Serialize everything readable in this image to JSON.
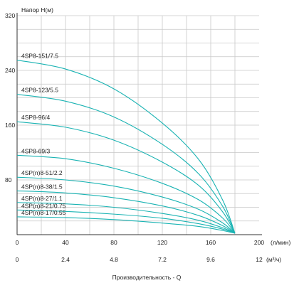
{
  "chart_data": {
    "type": "line",
    "ylabel": "Напор Н(м)",
    "xlabel": "Производительность - Q",
    "x_unit_primary": "(л/мин)",
    "x_unit_secondary": "(м³/ч)",
    "xlim": [
      0,
      200
    ],
    "ylim": [
      0,
      320
    ],
    "x_ticks": [
      0,
      40,
      80,
      120,
      160,
      200
    ],
    "y_ticks": [
      80,
      160,
      240,
      320
    ],
    "y_tick_labels": [
      "80",
      "160",
      "240",
      "320"
    ],
    "x_ticks_secondary": [
      "0",
      "2.4",
      "4.8",
      "7.2",
      "9.6",
      "12"
    ],
    "grid": true,
    "line_color": "#1ab3b3",
    "series": [
      {
        "name": "4SP8-151/7.5",
        "values": [
          {
            "x": 0,
            "y": 255
          },
          {
            "x": 40,
            "y": 242
          },
          {
            "x": 80,
            "y": 213
          },
          {
            "x": 120,
            "y": 163
          },
          {
            "x": 150,
            "y": 110
          },
          {
            "x": 170,
            "y": 50
          },
          {
            "x": 180,
            "y": 2
          }
        ]
      },
      {
        "name": "4SP8-123/5.5",
        "values": [
          {
            "x": 0,
            "y": 205
          },
          {
            "x": 40,
            "y": 195
          },
          {
            "x": 80,
            "y": 172
          },
          {
            "x": 120,
            "y": 132
          },
          {
            "x": 150,
            "y": 89
          },
          {
            "x": 170,
            "y": 41
          },
          {
            "x": 180,
            "y": 2
          }
        ]
      },
      {
        "name": "4SP8-96/4",
        "values": [
          {
            "x": 0,
            "y": 165
          },
          {
            "x": 40,
            "y": 157
          },
          {
            "x": 80,
            "y": 138
          },
          {
            "x": 120,
            "y": 106
          },
          {
            "x": 150,
            "y": 72
          },
          {
            "x": 170,
            "y": 33
          },
          {
            "x": 180,
            "y": 2
          }
        ]
      },
      {
        "name": "4SP8-69/3",
        "values": [
          {
            "x": 0,
            "y": 116
          },
          {
            "x": 40,
            "y": 111
          },
          {
            "x": 80,
            "y": 97
          },
          {
            "x": 120,
            "y": 75
          },
          {
            "x": 150,
            "y": 51
          },
          {
            "x": 170,
            "y": 24
          },
          {
            "x": 180,
            "y": 2
          }
        ]
      },
      {
        "name": "4SP(n)8-51/2.2",
        "values": [
          {
            "x": 0,
            "y": 84
          },
          {
            "x": 40,
            "y": 80
          },
          {
            "x": 80,
            "y": 71
          },
          {
            "x": 120,
            "y": 55
          },
          {
            "x": 150,
            "y": 37
          },
          {
            "x": 170,
            "y": 17
          },
          {
            "x": 180,
            "y": 2
          }
        ]
      },
      {
        "name": "4SP(n)8-38/1.5",
        "values": [
          {
            "x": 0,
            "y": 64
          },
          {
            "x": 40,
            "y": 61
          },
          {
            "x": 80,
            "y": 54
          },
          {
            "x": 120,
            "y": 42
          },
          {
            "x": 150,
            "y": 28
          },
          {
            "x": 170,
            "y": 13
          },
          {
            "x": 180,
            "y": 2
          }
        ]
      },
      {
        "name": "4SP(n)8-27/1.1",
        "values": [
          {
            "x": 0,
            "y": 47
          },
          {
            "x": 40,
            "y": 45
          },
          {
            "x": 80,
            "y": 40
          },
          {
            "x": 120,
            "y": 31
          },
          {
            "x": 150,
            "y": 21
          },
          {
            "x": 170,
            "y": 10
          },
          {
            "x": 180,
            "y": 2
          }
        ]
      },
      {
        "name": "4SP(n)8-21/0.75",
        "values": [
          {
            "x": 0,
            "y": 36
          },
          {
            "x": 40,
            "y": 34
          },
          {
            "x": 80,
            "y": 30
          },
          {
            "x": 120,
            "y": 24
          },
          {
            "x": 150,
            "y": 16
          },
          {
            "x": 170,
            "y": 8
          },
          {
            "x": 180,
            "y": 2
          }
        ]
      },
      {
        "name": "4SP(n)8-17/0.55",
        "values": [
          {
            "x": 0,
            "y": 26
          },
          {
            "x": 40,
            "y": 25
          },
          {
            "x": 80,
            "y": 22
          },
          {
            "x": 120,
            "y": 17
          },
          {
            "x": 150,
            "y": 12
          },
          {
            "x": 170,
            "y": 6
          },
          {
            "x": 180,
            "y": 2
          }
        ]
      }
    ]
  }
}
